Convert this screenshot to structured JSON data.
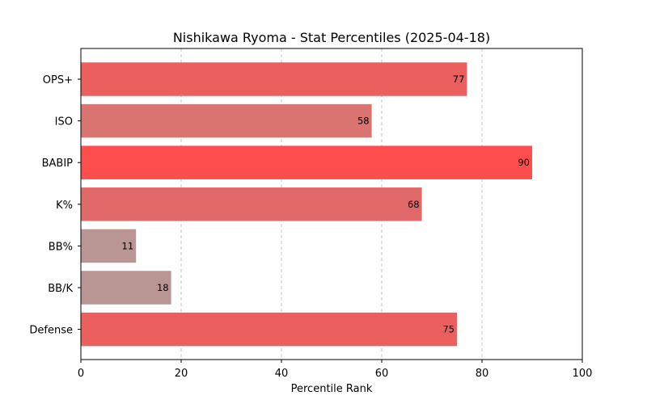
{
  "chart_data": {
    "type": "bar",
    "orientation": "horizontal",
    "title": "Nishikawa Ryoma - Stat Percentiles (2025-04-18)",
    "xlabel": "Percentile Rank",
    "ylabel": "",
    "xlim": [
      0,
      100
    ],
    "xticks": [
      "0",
      "20",
      "40",
      "60",
      "80",
      "100"
    ],
    "grid": "vertical dashed",
    "categories": [
      "OPS+",
      "ISO",
      "BABIP",
      "K%",
      "BB%",
      "BB/K",
      "Defense"
    ],
    "values": [
      77,
      58,
      90,
      68,
      11,
      18,
      75
    ],
    "data_labels": [
      "77",
      "58",
      "90",
      "68",
      "11",
      "18",
      "75"
    ],
    "bar_colors": [
      "#ec5f5f",
      "#d97471",
      "#fe4d4d",
      "#e16969",
      "#b99594",
      "#b99594",
      "#ec5f5f"
    ]
  }
}
